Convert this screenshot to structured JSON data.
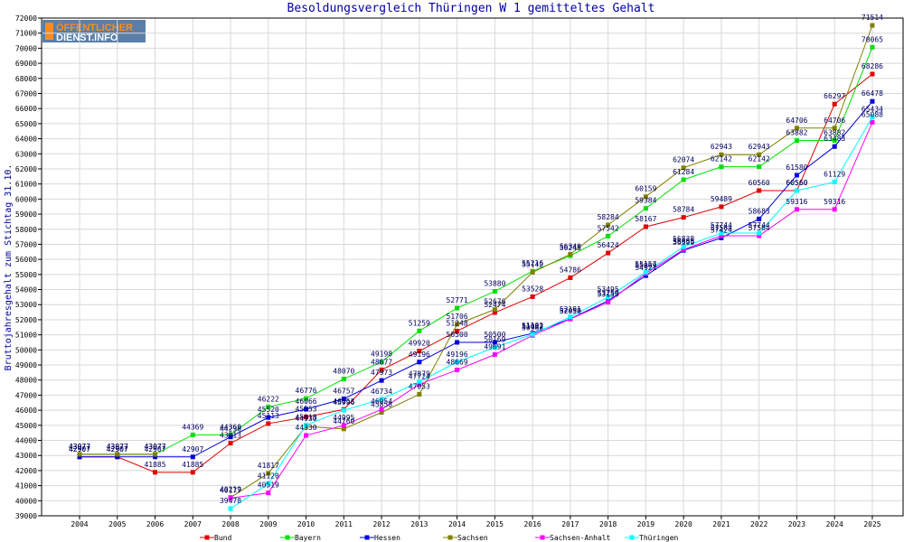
{
  "logo": {
    "line1": "ÖFFENTLICHER",
    "line2": "DIENST.INFO",
    "icon": "logo-icon"
  },
  "colors": {
    "axis": "#0000a0",
    "frame": "#000000",
    "grid": "#d8d8d8",
    "logo_bg": "#5a7ea8",
    "logo_accent": "#ff8c1a"
  },
  "chart_data": {
    "type": "line",
    "title": "Besoldungsvergleich Thüringen W 1 gemitteltes Gehalt",
    "xlabel": "",
    "ylabel": "Bruttojahresgehalt zum Stichtag 31.10.",
    "categories": [
      "2004",
      "2005",
      "2006",
      "2007",
      "2008",
      "2009",
      "2010",
      "2011",
      "2012",
      "2013",
      "2014",
      "2015",
      "2016",
      "2017",
      "2018",
      "2019",
      "2020",
      "2021",
      "2022",
      "2023",
      "2024",
      "2025"
    ],
    "yticks": [
      39000,
      40000,
      41000,
      42000,
      43000,
      44000,
      45000,
      46000,
      47000,
      48000,
      49000,
      50000,
      51000,
      52000,
      53000,
      54000,
      55000,
      56000,
      57000,
      58000,
      59000,
      60000,
      61000,
      62000,
      63000,
      64000,
      65000,
      66000,
      67000,
      68000,
      69000,
      70000,
      71000,
      72000
    ],
    "ylim": [
      39000,
      72000
    ],
    "grid": true,
    "legend_position": "bottom",
    "series": [
      {
        "name": "Bund",
        "color": "#e00000",
        "values": [
          42907,
          42907,
          41885,
          41885,
          43813,
          45113,
          45553,
          46053,
          48677,
          49920,
          51248,
          52474,
          53528,
          54786,
          56424,
          58167,
          58784,
          59489,
          60560,
          60560,
          66297,
          68286
        ]
      },
      {
        "name": "Bayern",
        "color": "#00e000",
        "values": [
          43077,
          43077,
          43077,
          44369,
          44369,
          46222,
          46776,
          48070,
          49198,
          51259,
          52771,
          53880,
          55216,
          56245,
          57542,
          59384,
          61284,
          62142,
          62142,
          63882,
          63882,
          70065
        ]
      },
      {
        "name": "Hessen",
        "color": "#0000e0",
        "values": [
          42907,
          42907,
          42907,
          42907,
          44230,
          45520,
          46066,
          46757,
          47973,
          49196,
          50500,
          50500,
          51102,
          52059,
          53259,
          54921,
          56599,
          57424,
          58683,
          61580,
          63483,
          66478
        ]
      },
      {
        "name": "Sachsen",
        "color": "#808000",
        "values": [
          43077,
          43077,
          43077,
          null,
          40219,
          41817,
          44930,
          44760,
          45858,
          47053,
          51706,
          52676,
          55142,
          56340,
          58284,
          60159,
          62074,
          62943,
          62943,
          64706,
          64706,
          71514
        ]
      },
      {
        "name": "Sachsen-Anhalt",
        "color": "#ff00ff",
        "values": [
          null,
          null,
          null,
          null,
          40177,
          40519,
          44330,
          44995,
          46054,
          47724,
          48669,
          49691,
          50962,
          52050,
          53159,
          55069,
          56655,
          57564,
          57564,
          59316,
          59316,
          65088
        ]
      },
      {
        "name": "Thüringen",
        "color": "#00ffff",
        "values": [
          null,
          null,
          null,
          null,
          39478,
          41120,
          45013,
          45996,
          46734,
          47879,
          49196,
          50169,
          51032,
          52191,
          53495,
          55157,
          56838,
          57744,
          57744,
          60560,
          61129,
          65434
        ]
      }
    ]
  }
}
